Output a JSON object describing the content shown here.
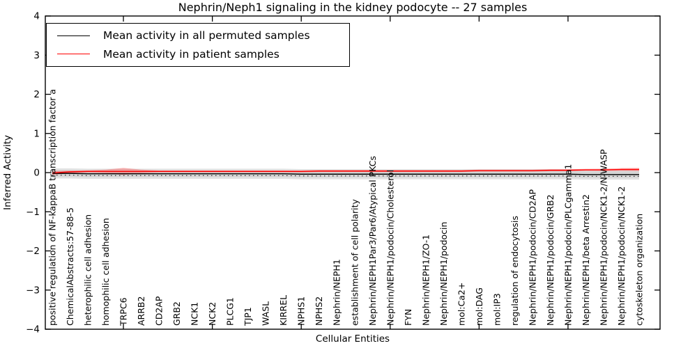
{
  "title": "Nephrin/Neph1 signaling in the kidney podocyte -- 27 samples",
  "xlabel": "Cellular Entities",
  "ylabel": "Inferred Activity",
  "legend": [
    {
      "label": "Mean activity in all permuted samples",
      "color": "#000000"
    },
    {
      "label": "Mean activity in patient samples",
      "color": "#ff0000"
    }
  ],
  "chart_data": {
    "type": "line",
    "title": "Nephrin/Neph1 signaling in the kidney podocyte -- 27 samples",
    "xlabel": "Cellular Entities",
    "ylabel": "Inferred Activity",
    "ylim": [
      -4,
      4
    ],
    "yticks": {
      "values": [
        4,
        3,
        2,
        1,
        0,
        -1,
        -2,
        -3,
        -4
      ],
      "labels": [
        "4",
        "3",
        "2",
        "1",
        "0",
        "−1",
        "−2",
        "−3",
        "−4"
      ]
    },
    "x_major_tick_every": 5,
    "grid": false,
    "legend_position": "upper left",
    "categories": [
      "positive regulation of NF-kappaB transcription factor a",
      "ChemicalAbstracts:57-88-5",
      "heterophilic cell adhesion",
      "homophilic cell adhesion",
      "TRPC6",
      "ARRB2",
      "CD2AP",
      "GRB2",
      "NCK1",
      "NCK2",
      "PLCG1",
      "TJP1",
      "WASL",
      "KIRREL",
      "NPHS1",
      "NPHS2",
      "Nephrin/NEPH1",
      "establishment of cell polarity",
      "Nephrin/NEPH1Par3/Par6/Atypical PKCs",
      "Nephrin/NEPH1/podocin/Cholesterol",
      "FYN",
      "Nephrin/NEPH1/ZO-1",
      "Nephrin/NEPH1/podocin",
      "mol:Ca2+",
      "mol:DAG",
      "mol:IP3",
      "regulation of endocytosis",
      "Nephrin/NEPH1/podocin/CD2AP",
      "Nephrin/NEPH1/podocin/GRB2",
      "Nephrin/NEPH1/podocin/PLCgamma1",
      "Nephrin/NEPH1/beta Arrestin2",
      "Nephrin/NEPH1/podocin/NCK1-2/N-WASP",
      "Nephrin/NEPH1/podocin/NCK1-2",
      "cytoskeleton organization"
    ],
    "series": [
      {
        "name": "Mean activity in all permuted samples",
        "color": "#000000",
        "values": [
          -0.02,
          -0.02,
          -0.03,
          -0.03,
          -0.03,
          -0.03,
          -0.03,
          -0.03,
          -0.03,
          -0.03,
          -0.03,
          -0.03,
          -0.03,
          -0.03,
          -0.04,
          -0.04,
          -0.04,
          -0.04,
          -0.04,
          -0.04,
          -0.04,
          -0.04,
          -0.04,
          -0.04,
          -0.04,
          -0.04,
          -0.04,
          -0.04,
          -0.04,
          -0.04,
          -0.05,
          -0.05,
          -0.05,
          -0.05
        ],
        "band_halfwidth_outer": 0.13,
        "band_halfwidth_inner": 0.08,
        "band_color_outer": "#e2e2e2",
        "band_color_inner": "#d4d4d4",
        "marker_dash_offset": -0.045
      },
      {
        "name": "Mean activity in patient samples",
        "color": "#ff0000",
        "values": [
          -0.01,
          0.02,
          0.03,
          0.03,
          0.03,
          0.03,
          0.03,
          0.03,
          0.03,
          0.03,
          0.03,
          0.03,
          0.03,
          0.03,
          0.03,
          0.04,
          0.04,
          0.04,
          0.04,
          0.04,
          0.04,
          0.04,
          0.04,
          0.04,
          0.05,
          0.05,
          0.05,
          0.05,
          0.06,
          0.06,
          0.07,
          0.07,
          0.08,
          0.08
        ],
        "band_halfwidth": [
          0.05,
          0.03,
          0.03,
          0.045,
          0.09,
          0.045,
          0.025,
          0.025,
          0.025,
          0.025,
          0.025,
          0.025,
          0.025,
          0.025,
          0.025,
          0.025,
          0.025,
          0.025,
          0.025,
          0.025,
          0.025,
          0.025,
          0.025,
          0.025,
          0.025,
          0.025,
          0.025,
          0.025,
          0.025,
          0.025,
          0.025,
          0.03,
          0.035,
          0.04
        ],
        "band_color": "rgba(255,0,0,0.28)"
      }
    ]
  }
}
